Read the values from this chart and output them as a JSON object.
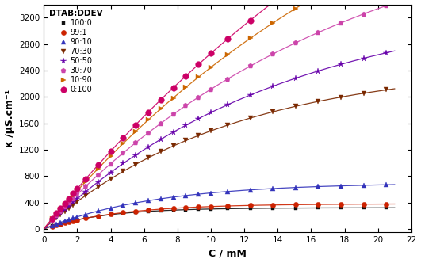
{
  "xlabel": "C / mM",
  "ylabel": "κ /μS.cm⁻¹",
  "xlim": [
    0,
    22
  ],
  "ylim": [
    -50,
    3400
  ],
  "yticks": [
    0,
    400,
    800,
    1200,
    1600,
    2000,
    2400,
    2800,
    3200
  ],
  "xticks": [
    0,
    2,
    4,
    6,
    8,
    10,
    12,
    14,
    16,
    18,
    20,
    22
  ],
  "series": [
    {
      "label": "100:0",
      "color": "#111111",
      "marker": "s",
      "markersize": 3.5,
      "A": 320,
      "k": 0.28,
      "linestyle": "-"
    },
    {
      "label": "99:1",
      "color": "#cc2200",
      "marker": "o",
      "markersize": 4.5,
      "A": 380,
      "k": 0.22,
      "linestyle": "-"
    },
    {
      "label": "90:10",
      "color": "#3333bb",
      "marker": "^",
      "markersize": 4.5,
      "A": 700,
      "k": 0.15,
      "linestyle": "-"
    },
    {
      "label": "70:30",
      "color": "#7a2800",
      "marker": "v",
      "markersize": 4.5,
      "A": 2500,
      "k": 0.09,
      "linestyle": "-"
    },
    {
      "label": "50:50",
      "color": "#6600aa",
      "marker": "*",
      "markersize": 5.5,
      "A": 3500,
      "k": 0.07,
      "linestyle": "-"
    },
    {
      "label": "30:70",
      "color": "#cc44aa",
      "marker": "p",
      "markersize": 4.5,
      "A": 5000,
      "k": 0.055,
      "linestyle": "-"
    },
    {
      "label": "10:90",
      "color": "#cc6600",
      "marker": ">",
      "markersize": 4.5,
      "A": 7000,
      "k": 0.043,
      "linestyle": "-"
    },
    {
      "label": "0:100",
      "color": "#cc0066",
      "marker": "o",
      "markersize": 5.5,
      "A": 9000,
      "k": 0.035,
      "linestyle": "-"
    }
  ],
  "legend_title": "DTAB:DDEV",
  "legend_title_fontsize": 7.5,
  "legend_fontsize": 7,
  "axis_fontsize": 9,
  "tick_fontsize": 7.5
}
